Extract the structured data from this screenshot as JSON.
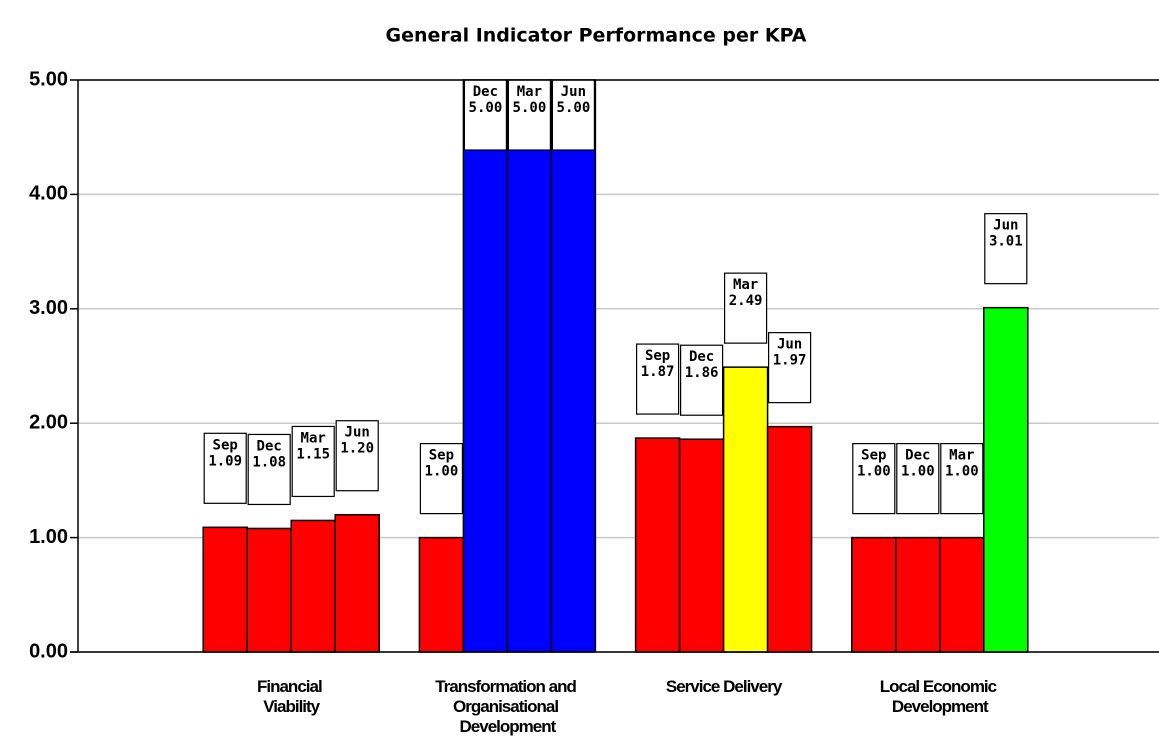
{
  "chart_data": {
    "type": "bar",
    "title": "General Indicator Performance per KPA",
    "categories": [
      "Financial Viability",
      "Transformation and Organisational Development",
      "Service Delivery",
      "Local Economic Development"
    ],
    "series": [
      {
        "name": "Sep",
        "values": [
          1.09,
          1.0,
          1.87,
          1.0
        ],
        "value_labels": [
          "1.09",
          "1.00",
          "1.87",
          "1.00"
        ],
        "colors": [
          "#ff0000",
          "#ff0000",
          "#ff0000",
          "#ff0000"
        ]
      },
      {
        "name": "Dec",
        "values": [
          1.08,
          5.0,
          1.86,
          1.0
        ],
        "value_labels": [
          "1.08",
          "5.00",
          "1.86",
          "1.00"
        ],
        "colors": [
          "#ff0000",
          "#0000ff",
          "#ff0000",
          "#ff0000"
        ]
      },
      {
        "name": "Mar",
        "values": [
          1.15,
          5.0,
          2.49,
          1.0
        ],
        "value_labels": [
          "1.15",
          "5.00",
          "2.49",
          "1.00"
        ],
        "colors": [
          "#ff0000",
          "#0000ff",
          "#ffff00",
          "#ff0000"
        ]
      },
      {
        "name": "Jun",
        "values": [
          1.2,
          5.0,
          1.97,
          3.01
        ],
        "value_labels": [
          "1.20",
          "5.00",
          "1.97",
          "3.01"
        ],
        "colors": [
          "#ff0000",
          "#0000ff",
          "#ff0000",
          "#00ff00"
        ]
      }
    ],
    "ylim": [
      0,
      5
    ],
    "yticks": [
      {
        "value": 0,
        "label": "0.00"
      },
      {
        "value": 1,
        "label": "1.00"
      },
      {
        "value": 2,
        "label": "2.00"
      },
      {
        "value": 3,
        "label": "3.00"
      },
      {
        "value": 4,
        "label": "4.00"
      },
      {
        "value": 5,
        "label": "5.00"
      }
    ],
    "grid": true
  }
}
